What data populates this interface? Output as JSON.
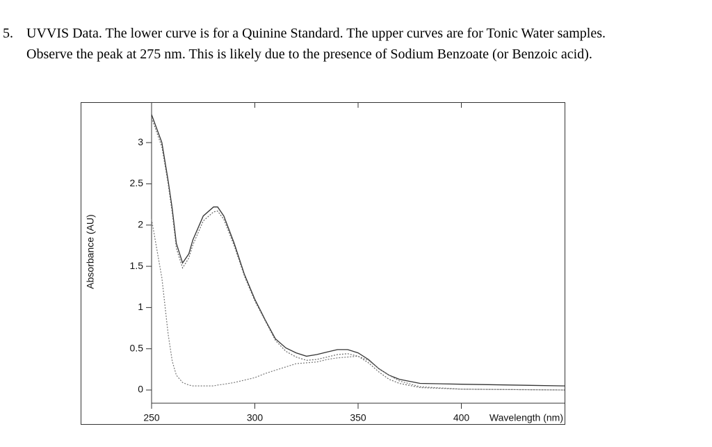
{
  "document": {
    "number": "5.",
    "lines": [
      "UVVIS Data.  The lower curve is for a Quinine Standard.  The upper curves are for Tonic Water samples.",
      "Observe the peak at 275 nm.  This is likely due to the presence of Sodium Benzoate (or Benzoic acid)."
    ]
  },
  "chart_data": {
    "type": "line",
    "x_label": "Wavelength (nm)",
    "y_label": "Absorbance (AU)",
    "xlim": [
      250,
      450
    ],
    "ylim": [
      -0.16,
      3.49
    ],
    "xticks": [
      250,
      300,
      350,
      400
    ],
    "yticks": [
      0,
      0.5,
      1,
      1.5,
      2,
      2.5,
      3
    ],
    "x": [
      250,
      255,
      258,
      260,
      262,
      265,
      268,
      270,
      275,
      280,
      282,
      285,
      290,
      295,
      300,
      305,
      310,
      315,
      320,
      325,
      330,
      335,
      340,
      345,
      350,
      355,
      360,
      365,
      370,
      380,
      400,
      450
    ],
    "series": [
      {
        "color": "#333333",
        "dash": false,
        "values": [
          3.34,
          3.0,
          2.54,
          2.2,
          1.78,
          1.54,
          1.65,
          1.82,
          2.11,
          2.22,
          2.22,
          2.11,
          1.78,
          1.4,
          1.1,
          0.85,
          0.62,
          0.51,
          0.45,
          0.41,
          0.43,
          0.46,
          0.49,
          0.49,
          0.45,
          0.37,
          0.26,
          0.18,
          0.13,
          0.08,
          0.07,
          0.05
        ]
      },
      {
        "color": "#666666",
        "dash": true,
        "values": [
          3.3,
          2.95,
          2.5,
          2.15,
          1.72,
          1.48,
          1.6,
          1.76,
          2.05,
          2.16,
          2.17,
          2.07,
          1.75,
          1.38,
          1.08,
          0.84,
          0.6,
          0.47,
          0.4,
          0.36,
          0.37,
          0.4,
          0.43,
          0.44,
          0.41,
          0.33,
          0.22,
          0.13,
          0.08,
          0.03,
          0.01,
          0.0
        ]
      },
      {
        "color": "#777777",
        "dash": true,
        "values": [
          2.07,
          1.36,
          0.68,
          0.35,
          0.18,
          0.09,
          0.06,
          0.05,
          0.05,
          0.05,
          0.06,
          0.07,
          0.09,
          0.12,
          0.15,
          0.2,
          0.24,
          0.28,
          0.32,
          0.33,
          0.34,
          0.37,
          0.39,
          0.4,
          0.41,
          0.36,
          0.26,
          0.18,
          0.11,
          0.04,
          0.01,
          0.0
        ]
      }
    ]
  }
}
